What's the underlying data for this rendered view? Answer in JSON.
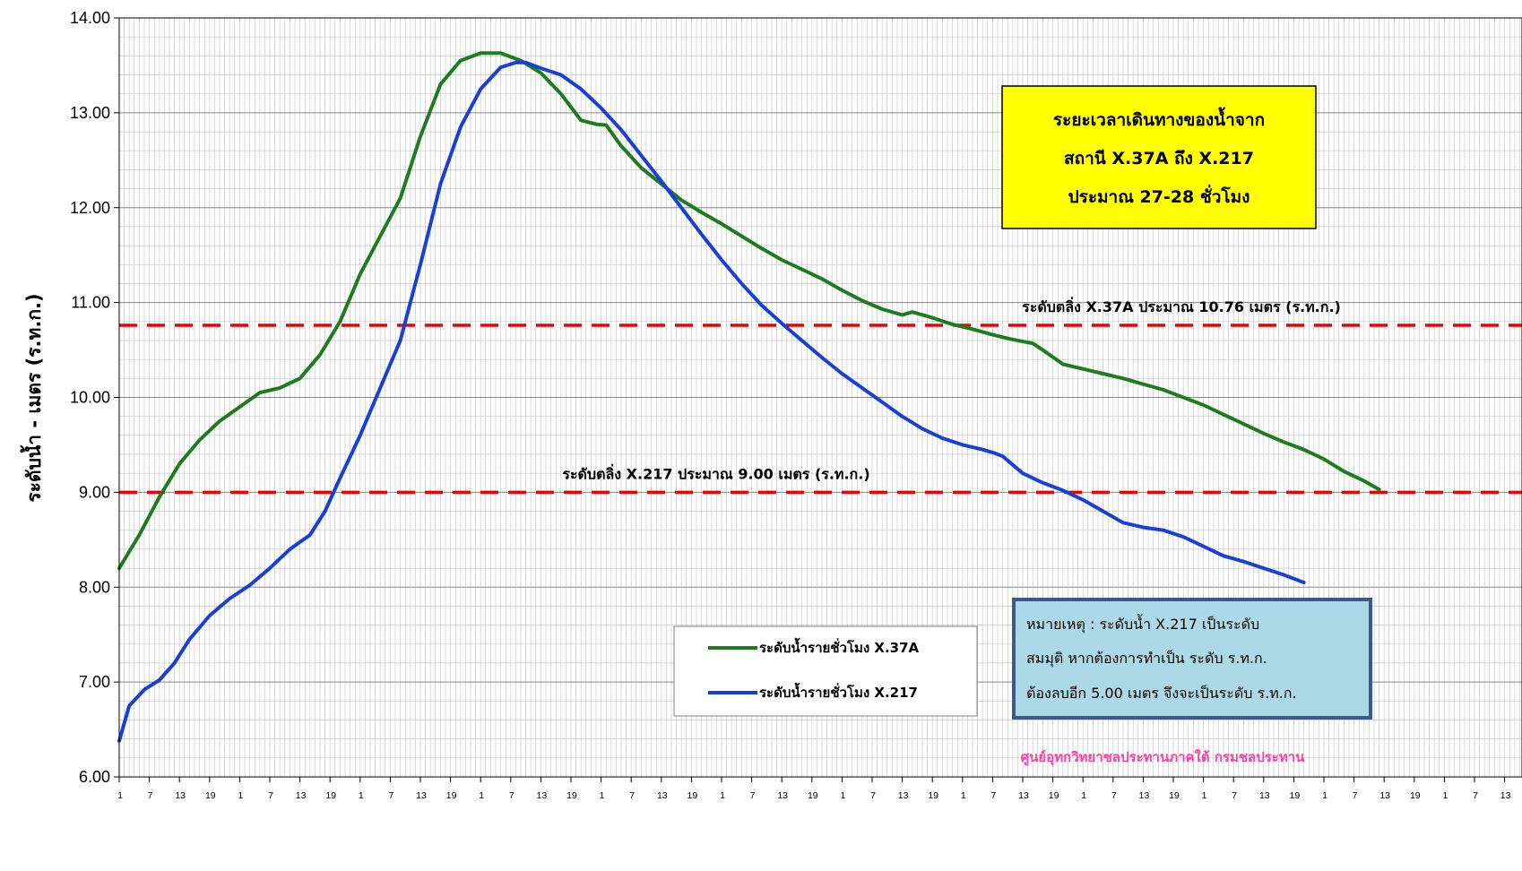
{
  "chart_data": {
    "type": "line",
    "ylabel": "ระดับน้ำ  -  เมตร (ร.ท.ก.)",
    "xlabel": "",
    "ylim": [
      6.0,
      14.0
    ],
    "y_ticks": [
      "6.00",
      "7.00",
      "8.00",
      "9.00",
      "10.00",
      "11.00",
      "12.00",
      "13.00",
      "14.00"
    ],
    "x_tick_labels": [
      "1",
      "7",
      "13",
      "19"
    ],
    "x_tick_repeat": 24,
    "x_tick_tail": [
      "1",
      "7",
      "13",
      "1"
    ],
    "grid": true,
    "colors": {
      "series_1": "#1e7b1e",
      "series_2": "#1a3fd6",
      "threshold": "#ee0000",
      "callout_bg": "#ffff00",
      "note_bg": "#add8e6",
      "note_border": "#3a5a8c",
      "credit": "#ff3fa0"
    },
    "series": [
      {
        "name": "ระดับน้ำรายชั่วโมง X.37A",
        "points": [
          [
            0,
            8.2
          ],
          [
            4,
            8.55
          ],
          [
            8,
            8.95
          ],
          [
            12,
            9.3
          ],
          [
            16,
            9.55
          ],
          [
            20,
            9.75
          ],
          [
            24,
            9.9
          ],
          [
            28,
            10.05
          ],
          [
            32,
            10.1
          ],
          [
            36,
            10.2
          ],
          [
            40,
            10.45
          ],
          [
            44,
            10.8
          ],
          [
            48,
            11.3
          ],
          [
            52,
            11.7
          ],
          [
            56,
            12.1
          ],
          [
            60,
            12.75
          ],
          [
            64,
            13.3
          ],
          [
            68,
            13.55
          ],
          [
            72,
            13.63
          ],
          [
            76,
            13.63
          ],
          [
            80,
            13.55
          ],
          [
            84,
            13.42
          ],
          [
            88,
            13.2
          ],
          [
            92,
            12.92
          ],
          [
            95,
            12.88
          ],
          [
            97,
            12.87
          ],
          [
            100,
            12.65
          ],
          [
            104,
            12.42
          ],
          [
            108,
            12.25
          ],
          [
            112,
            12.08
          ],
          [
            116,
            11.95
          ],
          [
            120,
            11.83
          ],
          [
            124,
            11.7
          ],
          [
            128,
            11.57
          ],
          [
            132,
            11.45
          ],
          [
            136,
            11.35
          ],
          [
            140,
            11.25
          ],
          [
            144,
            11.13
          ],
          [
            148,
            11.02
          ],
          [
            152,
            10.93
          ],
          [
            156,
            10.87
          ],
          [
            158,
            10.9
          ],
          [
            162,
            10.84
          ],
          [
            166,
            10.77
          ],
          [
            170,
            10.72
          ],
          [
            174,
            10.66
          ],
          [
            178,
            10.61
          ],
          [
            182,
            10.57
          ],
          [
            184,
            10.5
          ],
          [
            188,
            10.35
          ],
          [
            192,
            10.3
          ],
          [
            196,
            10.25
          ],
          [
            200,
            10.2
          ],
          [
            204,
            10.14
          ],
          [
            208,
            10.08
          ],
          [
            212,
            10.0
          ],
          [
            216,
            9.92
          ],
          [
            220,
            9.82
          ],
          [
            224,
            9.72
          ],
          [
            228,
            9.62
          ],
          [
            232,
            9.53
          ],
          [
            236,
            9.45
          ],
          [
            240,
            9.35
          ],
          [
            244,
            9.22
          ],
          [
            248,
            9.12
          ],
          [
            251,
            9.03
          ]
        ]
      },
      {
        "name": "ระดับน้ำรายชั่วโมง X.217",
        "points": [
          [
            0,
            6.38
          ],
          [
            2,
            6.75
          ],
          [
            5,
            6.92
          ],
          [
            8,
            7.02
          ],
          [
            11,
            7.2
          ],
          [
            14,
            7.45
          ],
          [
            18,
            7.7
          ],
          [
            22,
            7.88
          ],
          [
            26,
            8.02
          ],
          [
            30,
            8.2
          ],
          [
            34,
            8.4
          ],
          [
            38,
            8.55
          ],
          [
            41,
            8.8
          ],
          [
            44,
            9.15
          ],
          [
            48,
            9.6
          ],
          [
            52,
            10.1
          ],
          [
            56,
            10.6
          ],
          [
            60,
            11.4
          ],
          [
            64,
            12.25
          ],
          [
            68,
            12.85
          ],
          [
            72,
            13.25
          ],
          [
            76,
            13.48
          ],
          [
            79,
            13.53
          ],
          [
            81,
            13.53
          ],
          [
            84,
            13.47
          ],
          [
            88,
            13.4
          ],
          [
            92,
            13.25
          ],
          [
            96,
            13.05
          ],
          [
            100,
            12.82
          ],
          [
            104,
            12.55
          ],
          [
            108,
            12.28
          ],
          [
            112,
            12.0
          ],
          [
            116,
            11.72
          ],
          [
            120,
            11.45
          ],
          [
            124,
            11.2
          ],
          [
            128,
            10.97
          ],
          [
            132,
            10.78
          ],
          [
            136,
            10.6
          ],
          [
            140,
            10.42
          ],
          [
            144,
            10.25
          ],
          [
            148,
            10.1
          ],
          [
            152,
            9.95
          ],
          [
            156,
            9.8
          ],
          [
            160,
            9.67
          ],
          [
            164,
            9.57
          ],
          [
            168,
            9.5
          ],
          [
            172,
            9.45
          ],
          [
            174,
            9.42
          ],
          [
            176,
            9.38
          ],
          [
            180,
            9.2
          ],
          [
            184,
            9.1
          ],
          [
            188,
            9.02
          ],
          [
            192,
            8.92
          ],
          [
            196,
            8.8
          ],
          [
            200,
            8.68
          ],
          [
            204,
            8.63
          ],
          [
            208,
            8.6
          ],
          [
            212,
            8.53
          ],
          [
            216,
            8.43
          ],
          [
            220,
            8.33
          ],
          [
            224,
            8.27
          ],
          [
            228,
            8.2
          ],
          [
            232,
            8.13
          ],
          [
            236,
            8.05
          ]
        ]
      }
    ],
    "thresholds": [
      {
        "value": 10.76,
        "label": "ระดับตลิ่ง X.37A ประมาณ 10.76 เมตร (ร.ท.ก.)"
      },
      {
        "value": 9.0,
        "label": "ระดับตลิ่ง X.217 ประมาณ 9.00 เมตร (ร.ท.ก.)"
      }
    ],
    "callout": [
      "ระยะเวลาเดินทางของน้ำจาก",
      "สถานี X.37A ถึง X.217",
      "ประมาณ 27-28 ชั่วโมง"
    ],
    "note": [
      "หมายเหตุ  :  ระดับน้ำ X.217 เป็นระดับ",
      "สมมุติ หากต้องการทำเป็น ระดับ ร.ท.ก.",
      "ต้องลบอีก 5.00 เมตร จึงจะเป็นระดับ ร.ท.ก."
    ],
    "credit": "ศูนย์อุทกวิทยาชลประทานภาคใต้ กรมชลประทาน",
    "legend_position": "bottom-center"
  }
}
